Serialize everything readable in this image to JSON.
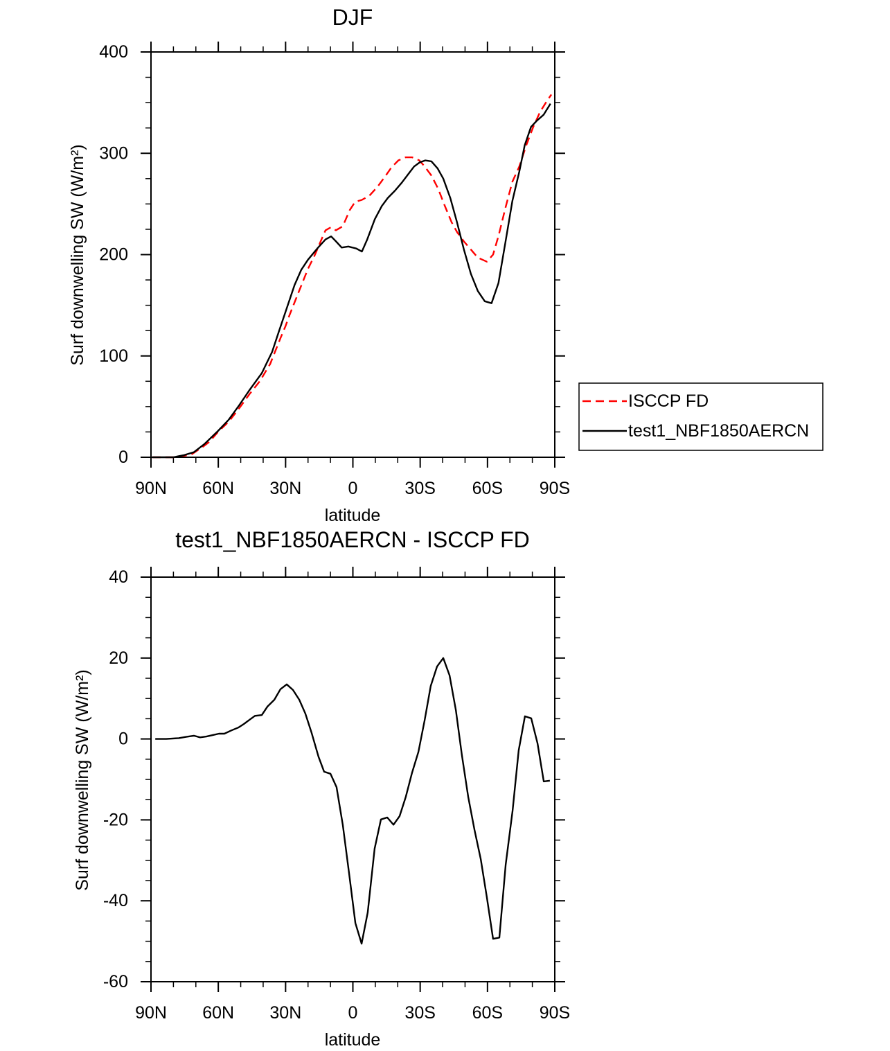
{
  "chart_data": [
    {
      "type": "line",
      "title": "DJF",
      "xlabel": "latitude",
      "ylabel": "Surf downwelling SW (W/m²)",
      "xlim": [
        90,
        -90
      ],
      "ylim": [
        0,
        400
      ],
      "x_ticks": [
        {
          "value": 90,
          "label": "90N"
        },
        {
          "value": 60,
          "label": "60N"
        },
        {
          "value": 30,
          "label": "30N"
        },
        {
          "value": 0,
          "label": "0"
        },
        {
          "value": -30,
          "label": "30S"
        },
        {
          "value": -60,
          "label": "60S"
        },
        {
          "value": -90,
          "label": "90S"
        }
      ],
      "x_minor_step": 10,
      "y_ticks": [
        0,
        100,
        200,
        300,
        400
      ],
      "y_minor_step": 25,
      "grid": false,
      "legend": "right",
      "series": [
        {
          "name": "ISCCP FD",
          "color": "#ff0000",
          "dashed": true,
          "x": [
            89.4,
            78.6,
            71.8,
            67.1,
            64.1,
            60.1,
            55.4,
            50.8,
            46.2,
            41.5,
            36.9,
            32.2,
            30.1,
            28.3,
            24.0,
            20.0,
            16.9,
            13.8,
            12.2,
            9.8,
            7.6,
            4.5,
            1.4,
            -1.0,
            -4.0,
            -7.3,
            -11.0,
            -14.0,
            -17.2,
            -20.3,
            -23.4,
            -26.5,
            -29.6,
            -32.0,
            -35.0,
            -38.0,
            -41.0,
            -44.0,
            -46.5,
            -49.5,
            -52.6,
            -55.7,
            -59.7,
            -62.5,
            -65.0,
            -68.0,
            -71.1,
            -74.2,
            -77.3,
            -80.4,
            -83.5,
            -86.6,
            -88.5
          ],
          "y": [
            0,
            0,
            3,
            10,
            15,
            25,
            35,
            48,
            62,
            75,
            92,
            118,
            129,
            140,
            164,
            186,
            200,
            216,
            224,
            227,
            224,
            228,
            244,
            252,
            254,
            258,
            267,
            276,
            286,
            293,
            296,
            296,
            293,
            287,
            278,
            265,
            248,
            232,
            222,
            213,
            205,
            197,
            193,
            200,
            219,
            246,
            272,
            287,
            308,
            326,
            341,
            352,
            358
          ]
        },
        {
          "name": "test1_NBF1850AERCN",
          "color": "#000000",
          "dashed": false,
          "x": [
            89.4,
            80.1,
            75.5,
            70.9,
            66.2,
            60.1,
            55.4,
            50.8,
            46.2,
            40.6,
            36.0,
            33.0,
            30.1,
            26.0,
            23.0,
            20.0,
            15.5,
            12.2,
            9.7,
            7.5,
            5.0,
            2.0,
            -1.5,
            -4.0,
            -6.4,
            -9.8,
            -12.9,
            -15.6,
            -18.7,
            -21.8,
            -24.9,
            -27.3,
            -29.8,
            -32.3,
            -35.0,
            -37.8,
            -40.3,
            -43.4,
            -46.4,
            -49.5,
            -52.6,
            -55.7,
            -58.8,
            -61.8,
            -64.9,
            -68.0,
            -71.1,
            -74.2,
            -76.6,
            -79.4,
            -81.9,
            -85.0,
            -88.1
          ],
          "y": [
            0,
            0,
            2,
            5,
            13,
            26,
            37,
            51,
            66,
            83,
            104,
            124,
            143,
            170,
            185,
            195,
            207,
            215,
            218,
            213,
            207,
            208,
            206,
            203,
            215,
            235,
            248,
            256,
            263,
            271,
            280,
            287,
            291,
            293,
            292,
            285,
            275,
            256,
            232,
            205,
            181,
            164,
            154,
            152,
            172,
            212,
            253,
            282,
            308,
            326,
            332,
            338,
            349
          ]
        }
      ]
    },
    {
      "type": "line",
      "title": "test1_NBF1850AERCN - ISCCP FD",
      "xlabel": "latitude",
      "ylabel": "Surf downwelling SW (W/m²)",
      "xlim": [
        90,
        -90
      ],
      "ylim": [
        -60,
        40
      ],
      "x_ticks": [
        {
          "value": 90,
          "label": "90N"
        },
        {
          "value": 60,
          "label": "60N"
        },
        {
          "value": 30,
          "label": "30N"
        },
        {
          "value": 0,
          "label": "0"
        },
        {
          "value": -30,
          "label": "30S"
        },
        {
          "value": -60,
          "label": "60S"
        },
        {
          "value": -90,
          "label": "90S"
        }
      ],
      "x_minor_step": 10,
      "y_ticks": [
        -60,
        -40,
        -20,
        0,
        20,
        40
      ],
      "y_minor_step": 5,
      "grid": false,
      "series": [
        {
          "color": "#000000",
          "dashed": false,
          "x": [
            88.1,
            83.2,
            77.6,
            74.6,
            70.9,
            68.1,
            65.3,
            62.2,
            59.7,
            57.3,
            54.2,
            51.1,
            48.6,
            46.2,
            43.7,
            40.6,
            38.1,
            35.0,
            32.3,
            29.5,
            26.7,
            23.9,
            21.2,
            18.4,
            15.3,
            12.8,
            10.0,
            7.3,
            4.5,
            1.7,
            -1.1,
            -3.9,
            -6.6,
            -9.7,
            -12.5,
            -15.3,
            -18.1,
            -20.8,
            -23.6,
            -26.4,
            -29.2,
            -32.0,
            -34.7,
            -37.5,
            -40.3,
            -43.1,
            -45.9,
            -48.6,
            -51.4,
            -54.2,
            -57.0,
            -59.7,
            -62.5,
            -65.3,
            -68.1,
            -71.2,
            -73.9,
            -76.7,
            -79.5,
            -82.3,
            -85.1,
            -87.8
          ],
          "y": [
            0,
            0,
            0.2,
            0.5,
            0.8,
            0.4,
            0.6,
            1.0,
            1.3,
            1.3,
            2.1,
            2.8,
            3.7,
            4.7,
            5.7,
            5.9,
            8.0,
            9.7,
            12.3,
            13.5,
            12.1,
            9.7,
            6.3,
            1.5,
            -4.4,
            -8.1,
            -8.6,
            -11.9,
            -21.2,
            -33.2,
            -45.5,
            -50.6,
            -42.9,
            -27.1,
            -19.9,
            -19.4,
            -21.2,
            -19.1,
            -14.3,
            -8.3,
            -3.2,
            4.6,
            13.1,
            17.9,
            20.0,
            15.7,
            7.1,
            -4.0,
            -14.3,
            -22.4,
            -29.7,
            -39.1,
            -49.4,
            -49.1,
            -31.1,
            -17.7,
            -2.8,
            5.6,
            5.1,
            -1.1,
            -10.5,
            -10.3
          ]
        }
      ]
    }
  ]
}
